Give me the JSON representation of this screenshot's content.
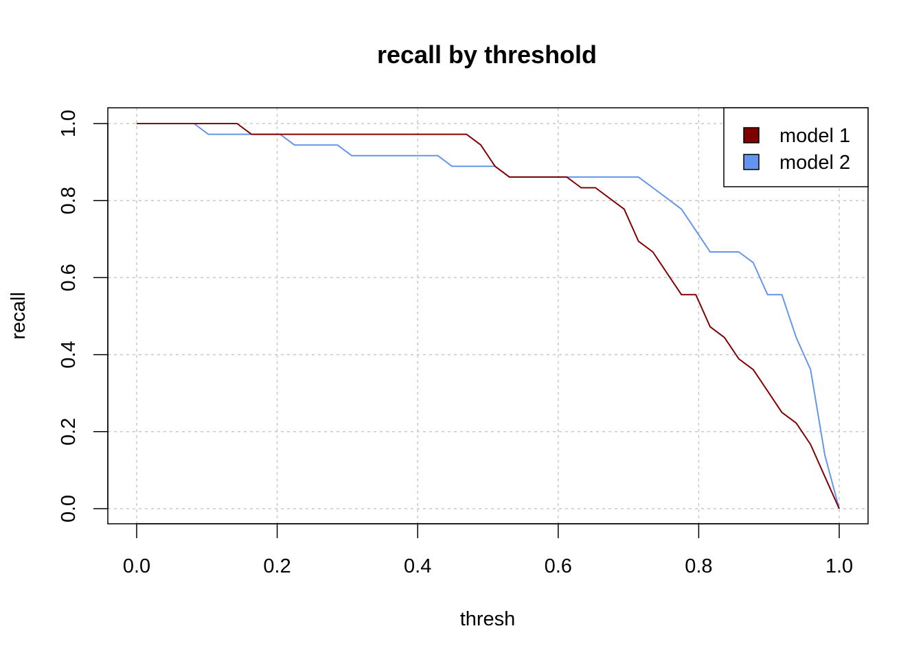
{
  "chart_data": {
    "type": "line",
    "title": "recall by threshold",
    "xlabel": "thresh",
    "ylabel": "recall",
    "xlim": [
      0,
      1
    ],
    "ylim": [
      0,
      1
    ],
    "xticks": [
      "0.0",
      "0.2",
      "0.4",
      "0.6",
      "0.8",
      "1.0"
    ],
    "yticks": [
      "0.0",
      "0.2",
      "0.4",
      "0.6",
      "0.8",
      "1.0"
    ],
    "grid": true,
    "legend_position": "top-right",
    "series": [
      {
        "name": "model 1",
        "color": "#800000",
        "x": [
          0.0,
          0.1429,
          0.1633,
          0.4694,
          0.4898,
          0.5102,
          0.5306,
          0.6122,
          0.6327,
          0.6531,
          0.6939,
          0.7143,
          0.7347,
          0.7755,
          0.7959,
          0.8163,
          0.8367,
          0.8571,
          0.8776,
          0.898,
          0.9184,
          0.9388,
          0.9592,
          0.9796,
          1.0
        ],
        "y": [
          1.0,
          1.0,
          0.9722,
          0.9722,
          0.9444,
          0.8889,
          0.8611,
          0.8611,
          0.8333,
          0.8333,
          0.7778,
          0.6944,
          0.6667,
          0.5556,
          0.5556,
          0.4722,
          0.4444,
          0.3889,
          0.3611,
          0.3056,
          0.25,
          0.2222,
          0.1667,
          0.0833,
          0.0
        ]
      },
      {
        "name": "model 2",
        "color": "#6495ED",
        "x": [
          0.0,
          0.0816,
          0.102,
          0.2041,
          0.2245,
          0.2857,
          0.3061,
          0.4286,
          0.449,
          0.5102,
          0.5306,
          0.7143,
          0.7347,
          0.7551,
          0.7755,
          0.7959,
          0.8163,
          0.8571,
          0.8776,
          0.898,
          0.9184,
          0.9388,
          0.9592,
          0.9796,
          1.0
        ],
        "y": [
          1.0,
          1.0,
          0.9722,
          0.9722,
          0.9444,
          0.9444,
          0.9167,
          0.9167,
          0.8889,
          0.8889,
          0.8611,
          0.8611,
          0.8333,
          0.8056,
          0.7778,
          0.7222,
          0.6667,
          0.6667,
          0.6389,
          0.5556,
          0.5556,
          0.4444,
          0.3611,
          0.1389,
          0.0
        ]
      }
    ]
  }
}
